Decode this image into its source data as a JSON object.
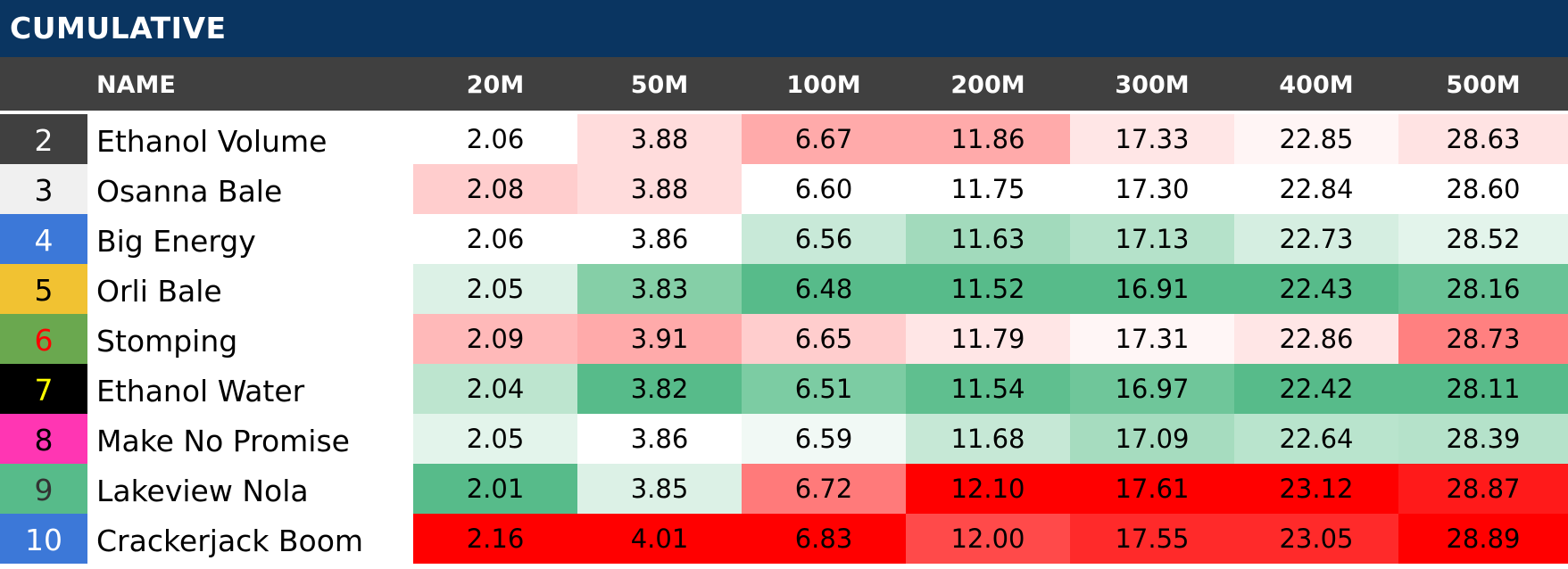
{
  "title": "CUMULATIVE",
  "chart_data": {
    "type": "table",
    "columns": [
      "NAME",
      "20M",
      "50M",
      "100M",
      "200M",
      "300M",
      "400M",
      "500M"
    ],
    "rows": [
      {
        "num": "2",
        "num_bg": "#404040",
        "num_color": "#ffffff",
        "name": "Ethanol Volume",
        "values": [
          "2.06",
          "3.88",
          "6.67",
          "11.86",
          "17.33",
          "22.85",
          "28.63"
        ],
        "colors": [
          "#ffffff",
          "#ffdcdc",
          "#ffaaaa",
          "#ffaaaa",
          "#ffe6e6",
          "#fff5f5",
          "#ffe3e3"
        ]
      },
      {
        "num": "3",
        "num_bg": "#f0f0f0",
        "num_color": "#000000",
        "name": "Osanna Bale",
        "values": [
          "2.08",
          "3.88",
          "6.60",
          "11.75",
          "17.30",
          "22.84",
          "28.60"
        ],
        "colors": [
          "#ffcdcd",
          "#ffdcdc",
          "#ffffff",
          "#ffffff",
          "#ffffff",
          "#ffffff",
          "#ffffff"
        ]
      },
      {
        "num": "4",
        "num_bg": "#3c78d8",
        "num_color": "#ffffff",
        "name": "Big Energy",
        "values": [
          "2.06",
          "3.86",
          "6.56",
          "11.63",
          "17.13",
          "22.73",
          "28.52"
        ],
        "colors": [
          "#ffffff",
          "#ffffff",
          "#c8e9d8",
          "#a2dabc",
          "#b5e2ca",
          "#d5eee1",
          "#e3f4eb"
        ]
      },
      {
        "num": "5",
        "num_bg": "#f1c232",
        "num_color": "#000000",
        "name": "Orli Bale",
        "values": [
          "2.05",
          "3.83",
          "6.48",
          "11.52",
          "16.91",
          "22.43",
          "28.16"
        ],
        "colors": [
          "#dcf1e6",
          "#85cfa7",
          "#57bb8a",
          "#57bb8a",
          "#57bb8a",
          "#57bb8a",
          "#69c396"
        ]
      },
      {
        "num": "6",
        "num_bg": "#6aa84f",
        "num_color": "#ff0000",
        "name": "Stomping",
        "values": [
          "2.09",
          "3.91",
          "6.65",
          "11.79",
          "17.31",
          "22.86",
          "28.73"
        ],
        "colors": [
          "#ffb9b9",
          "#ffaaaa",
          "#ffcdcd",
          "#ffe6e6",
          "#fff6f6",
          "#ffe6e6",
          "#ff8080"
        ]
      },
      {
        "num": "7",
        "num_bg": "#000000",
        "num_color": "#ffff00",
        "name": "Ethanol Water",
        "values": [
          "2.04",
          "3.82",
          "6.51",
          "11.54",
          "16.97",
          "22.42",
          "28.11"
        ],
        "colors": [
          "#bde5cf",
          "#57bb8a",
          "#7ccca3",
          "#5fbf8f",
          "#6fc69a",
          "#57bb8a",
          "#57bb8a"
        ]
      },
      {
        "num": "8",
        "num_bg": "#ff36b3",
        "num_color": "#000000",
        "name": "Make No Promise",
        "values": [
          "2.05",
          "3.86",
          "6.59",
          "11.68",
          "17.09",
          "22.64",
          "28.39"
        ],
        "colors": [
          "#e3f4eb",
          "#ffffff",
          "#f1f9f5",
          "#c6e8d6",
          "#a6dcbf",
          "#b9e4cd",
          "#b5e2ca"
        ]
      },
      {
        "num": "9",
        "num_bg": "#57bb8a",
        "num_color": "#333333",
        "name": "Lakeview Nola",
        "values": [
          "2.01",
          "3.85",
          "6.72",
          "12.10",
          "17.61",
          "23.12",
          "28.87"
        ],
        "colors": [
          "#57bb8a",
          "#dcf1e6",
          "#ff7a7a",
          "#ff0000",
          "#ff0000",
          "#ff0000",
          "#ff1a1a"
        ]
      },
      {
        "num": "10",
        "num_bg": "#3c78d8",
        "num_color": "#ffffff",
        "name": "Crackerjack Boom",
        "values": [
          "2.16",
          "4.01",
          "6.83",
          "12.00",
          "17.55",
          "23.05",
          "28.89"
        ],
        "colors": [
          "#ff0000",
          "#ff0000",
          "#ff0000",
          "#ff4a4a",
          "#ff2a2a",
          "#ff2a2a",
          "#ff0000"
        ]
      }
    ]
  }
}
